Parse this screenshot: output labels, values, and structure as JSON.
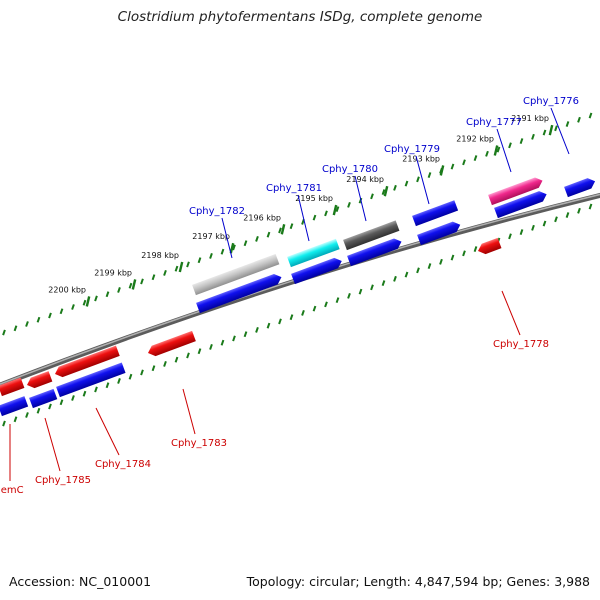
{
  "title": "Clostridium phytofermentans ISDg, complete genome",
  "footer": {
    "accession": "Accession: NC_010001",
    "topology": "Topology: circular; Length: 4,847,594 bp; Genes: 3,988"
  },
  "colors": {
    "forward_label": "#0000cc",
    "reverse_label": "#cc0000",
    "tick": "#1a7a1a",
    "backbone": "#888888"
  },
  "ticks": [
    {
      "label": "2200 kbp"
    },
    {
      "label": "2199 kbp"
    },
    {
      "label": "2198 kbp"
    },
    {
      "label": "2197 kbp"
    },
    {
      "label": "2196 kbp"
    },
    {
      "label": "2195 kbp"
    },
    {
      "label": "2194 kbp"
    },
    {
      "label": "2193 kbp"
    },
    {
      "label": "2192 kbp"
    },
    {
      "label": "2191 kbp"
    }
  ],
  "gene_labels": {
    "forward": [
      "Cphy_1782",
      "Cphy_1781",
      "Cphy_1780",
      "Cphy_1779",
      "Cphy_1777",
      "Cphy_1776"
    ],
    "reverse": [
      "hemC",
      "Cphy_1785",
      "Cphy_1784",
      "Cphy_1783",
      "Cphy_1778"
    ]
  }
}
